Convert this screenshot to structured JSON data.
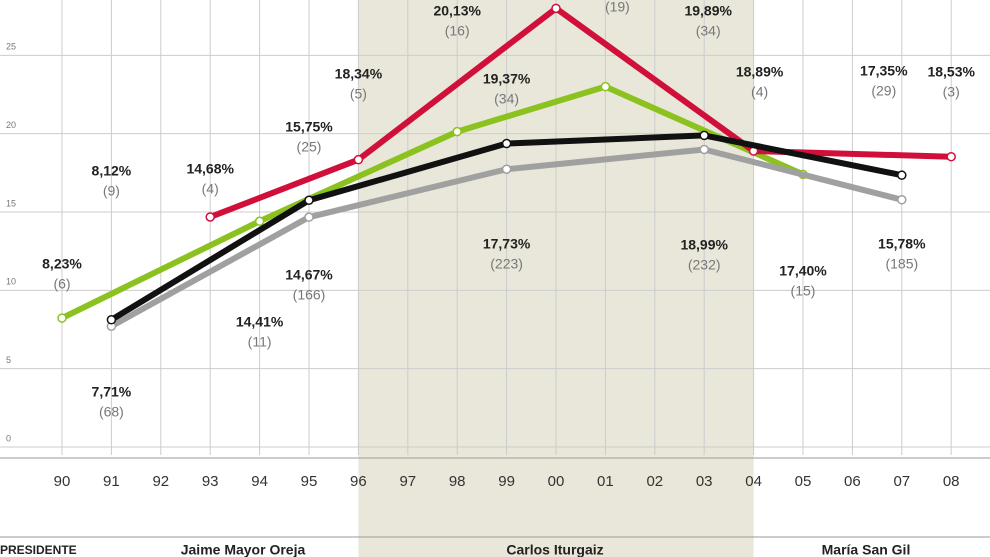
{
  "chart_data": {
    "type": "line",
    "categories": [
      "90",
      "91",
      "92",
      "93",
      "94",
      "95",
      "96",
      "97",
      "98",
      "99",
      "00",
      "01",
      "02",
      "03",
      "04",
      "05",
      "06",
      "07",
      "08"
    ],
    "ylim": [
      0,
      28.5
    ],
    "yticks": [
      0,
      5,
      10,
      15,
      20,
      25
    ],
    "grid": true,
    "series": [
      {
        "color": "#8cc21f",
        "x": [
          "90",
          "94",
          "98",
          "01",
          "05"
        ],
        "values": [
          8.23,
          14.41,
          20.13,
          23,
          17.4
        ],
        "value_labels": [
          "8,23%",
          "14,41%",
          "20,13%",
          null,
          "17,40%"
        ],
        "seat_labels": [
          "(6)",
          "(11)",
          "(16)",
          "(19)",
          "(15)"
        ]
      },
      {
        "color": "#d0103a",
        "x": [
          "93",
          "96",
          "00",
          "04",
          "08"
        ],
        "values": [
          14.68,
          18.34,
          28,
          18.89,
          18.53
        ],
        "value_labels": [
          "14,68%",
          "18,34%",
          null,
          "18,89%",
          "18,53%"
        ],
        "seat_labels": [
          "(4)",
          "(5)",
          null,
          "(4)",
          "(3)"
        ]
      },
      {
        "color": "#a0a0a0",
        "x": [
          "91",
          "95",
          "99",
          "03",
          "07"
        ],
        "values": [
          7.71,
          14.67,
          17.73,
          18.99,
          15.78
        ],
        "value_labels": [
          "7,71%",
          "14,67%",
          "17,73%",
          "18,99%",
          "15,78%"
        ],
        "seat_labels": [
          "(68)",
          "(166)",
          "(223)",
          "(232)",
          "(185)"
        ]
      },
      {
        "color": "#111111",
        "x": [
          "91",
          "95",
          "99",
          "03",
          "07"
        ],
        "values": [
          8.12,
          15.75,
          19.37,
          19.89,
          17.35
        ],
        "value_labels": [
          "8,12%",
          "15,75%",
          "19,37%",
          "19,89%",
          "17,35%"
        ],
        "seat_labels": [
          "(9)",
          "(25)",
          "(34)",
          "(34)",
          "(29)"
        ]
      }
    ],
    "shaded_range": [
      "96",
      "04"
    ],
    "presidents_heading": "PRESIDENTE",
    "presidents": [
      "Jaime Mayor Oreja",
      "Carlos Iturgaiz",
      "María San Gil"
    ]
  }
}
